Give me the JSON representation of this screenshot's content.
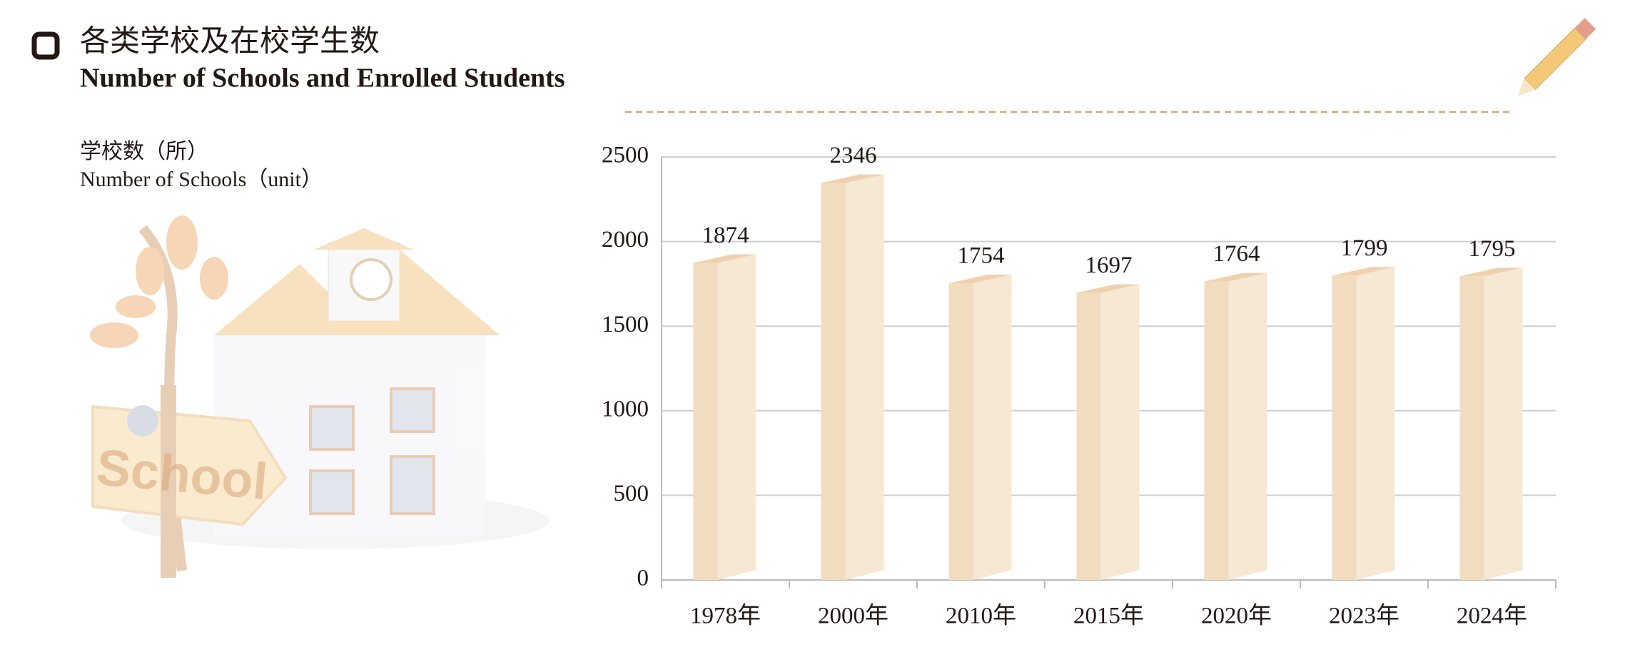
{
  "title": "各类学校及在校学生数",
  "subtitle": "Number of Schools and Enrolled Students",
  "illustration_text": "School",
  "chart_data": {
    "type": "bar",
    "ylabel": "学校数（所）",
    "ylabel_en": "Number of Schools（unit）",
    "categories": [
      "1978年",
      "2000年",
      "2010年",
      "2015年",
      "2020年",
      "2023年",
      "2024年"
    ],
    "values": [
      1874,
      2346,
      1754,
      1697,
      1764,
      1799,
      1795
    ],
    "color": "#f2dcc0",
    "ylim": [
      0,
      2500
    ],
    "yticks": [
      0,
      500,
      1000,
      1500,
      2000,
      2500
    ],
    "grid": true
  }
}
